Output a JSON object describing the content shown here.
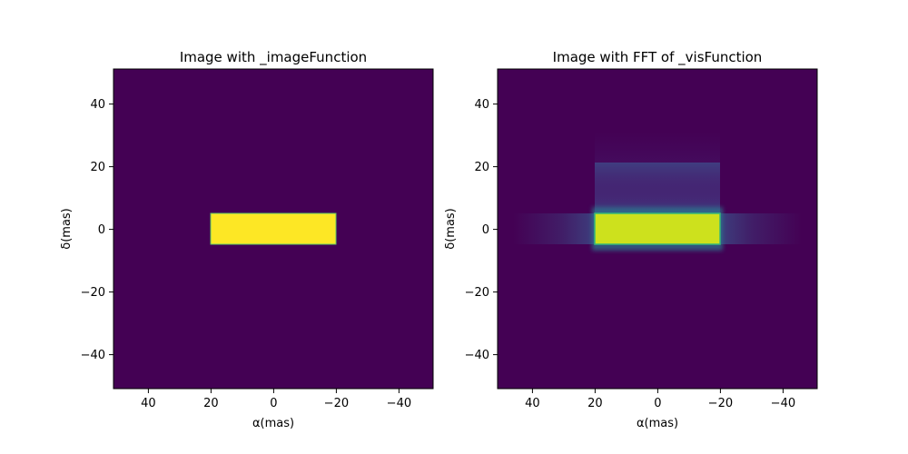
{
  "chart_data": [
    {
      "type": "heatmap",
      "title": "Image with _imageFunction",
      "xlabel": "α(mas)",
      "ylabel": "δ(mas)",
      "xlim": [
        51,
        -51
      ],
      "ylim": [
        -51,
        51
      ],
      "xticks": [
        40,
        20,
        0,
        -20,
        -40
      ],
      "yticks": [
        40,
        20,
        0,
        -20,
        -40
      ],
      "xtick_labels": [
        "40",
        "20",
        "0",
        "−20",
        "−40"
      ],
      "ytick_labels": [
        "40",
        "20",
        "0",
        "−20",
        "−40"
      ],
      "colormap": "viridis",
      "background_color": "#440154",
      "regions": [
        {
          "shape": "rectangle",
          "alpha_range": [
            -20,
            20
          ],
          "delta_range": [
            -5,
            5
          ],
          "intensity": 1.0,
          "color": "#fde725"
        }
      ],
      "grid": false,
      "legend": "none"
    },
    {
      "type": "heatmap",
      "title": "Image with FFT of _visFunction",
      "xlabel": "α(mas)",
      "ylabel": "δ(mas)",
      "xlim": [
        51,
        -51
      ],
      "ylim": [
        -51,
        51
      ],
      "xticks": [
        40,
        20,
        0,
        -20,
        -40
      ],
      "yticks": [
        40,
        20,
        0,
        -20,
        -40
      ],
      "xtick_labels": [
        "40",
        "20",
        "0",
        "−20",
        "−40"
      ],
      "ytick_labels": [
        "40",
        "20",
        "0",
        "−20",
        "−40"
      ],
      "colormap": "viridis",
      "background_color": "#440154",
      "regions": [
        {
          "shape": "rectangle",
          "alpha_range": [
            -20,
            20
          ],
          "delta_range": [
            -5,
            5
          ],
          "intensity": 0.9,
          "color": "#cde11d"
        }
      ],
      "sidelobes": [
        {
          "direction": "horizontal",
          "alpha_range": [
            -46,
            46
          ],
          "delta_range": [
            -5,
            5
          ],
          "color": "#3b528b"
        },
        {
          "direction": "vertical",
          "alpha_range": [
            -20,
            20
          ],
          "delta_range": [
            -32,
            32
          ],
          "color": "#482878"
        }
      ],
      "grid": false,
      "legend": "none"
    }
  ]
}
